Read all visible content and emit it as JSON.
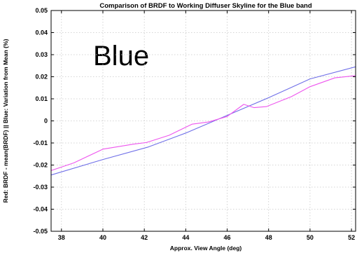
{
  "chart_data": {
    "type": "line",
    "title": "Comparison of BRDF to Working Diffuser Skyline for the Blue band",
    "annotation": "Blue",
    "xlabel": "Approx. View Angle (deg)",
    "ylabel": "Red: BRDF - mean(BRDF) || Blue: Variation from Mean (%)",
    "xlim": [
      37.5,
      52.2
    ],
    "ylim": [
      -0.05,
      0.05
    ],
    "x_ticks": [
      38,
      40,
      42,
      44,
      46,
      48,
      50,
      52
    ],
    "x_tick_labels": [
      "38",
      "40",
      "42",
      "44",
      "46",
      "48",
      "50",
      "52"
    ],
    "y_ticks": [
      -0.05,
      -0.04,
      -0.03,
      -0.02,
      -0.01,
      0,
      0.01,
      0.02,
      0.03,
      0.04,
      0.05
    ],
    "y_tick_labels": [
      "-0.05",
      "-0.04",
      "-0.03",
      "-0.02",
      "-0.01",
      "0",
      "0.01",
      "0.02",
      "0.03",
      "0.04",
      "0.05"
    ],
    "grid": true,
    "series": [
      {
        "color": "#6f6fe8",
        "x": [
          37.5,
          40,
          42.2,
          44,
          46,
          48,
          50,
          52.2
        ],
        "values": [
          -0.0245,
          -0.0175,
          -0.0118,
          -0.0055,
          0.0025,
          0.0105,
          0.019,
          0.0245
        ]
      },
      {
        "color": "#ee55ee",
        "x": [
          37.5,
          38.6,
          40,
          41.5,
          42.1,
          43.2,
          44.3,
          45.1,
          46,
          46.8,
          47.3,
          47.9,
          49.1,
          50,
          51.2,
          52.2
        ],
        "values": [
          -0.0225,
          -0.019,
          -0.0128,
          -0.0105,
          -0.0098,
          -0.0065,
          -0.0015,
          -0.0005,
          0.002,
          0.0075,
          0.006,
          0.0065,
          0.011,
          0.0155,
          0.0195,
          0.0205
        ]
      }
    ]
  }
}
